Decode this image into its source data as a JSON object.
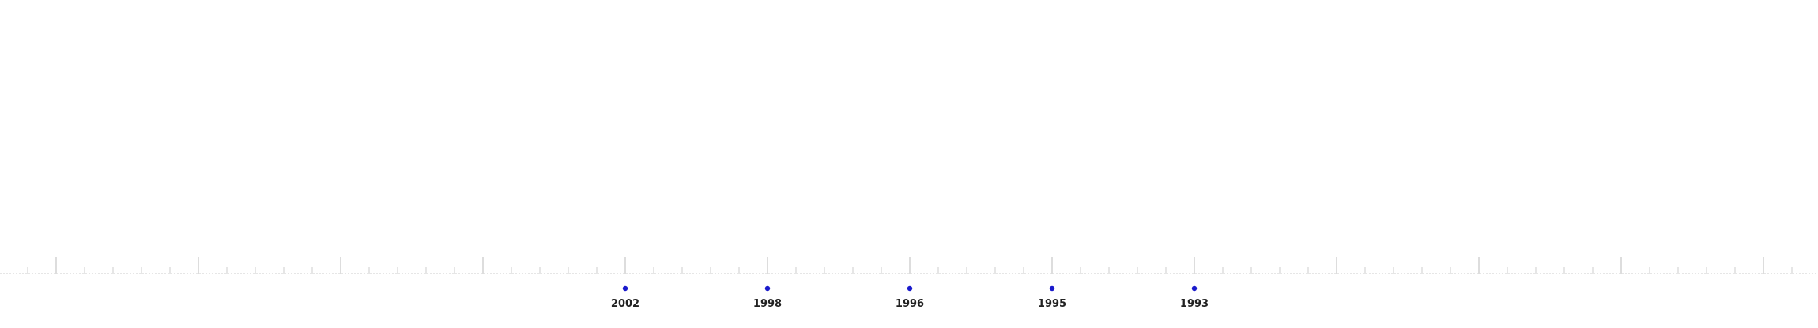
{
  "timeline": {
    "axis_color": "#cccccc",
    "major_tick_color": "#bbbbbb",
    "minor_tick_color": "#cccccc",
    "marker_color": "#1a1acc",
    "label_color": "#222222",
    "events": [
      {
        "year": "2002"
      },
      {
        "year": "1998"
      },
      {
        "year": "1996"
      },
      {
        "year": "1995"
      },
      {
        "year": "1993"
      }
    ]
  }
}
